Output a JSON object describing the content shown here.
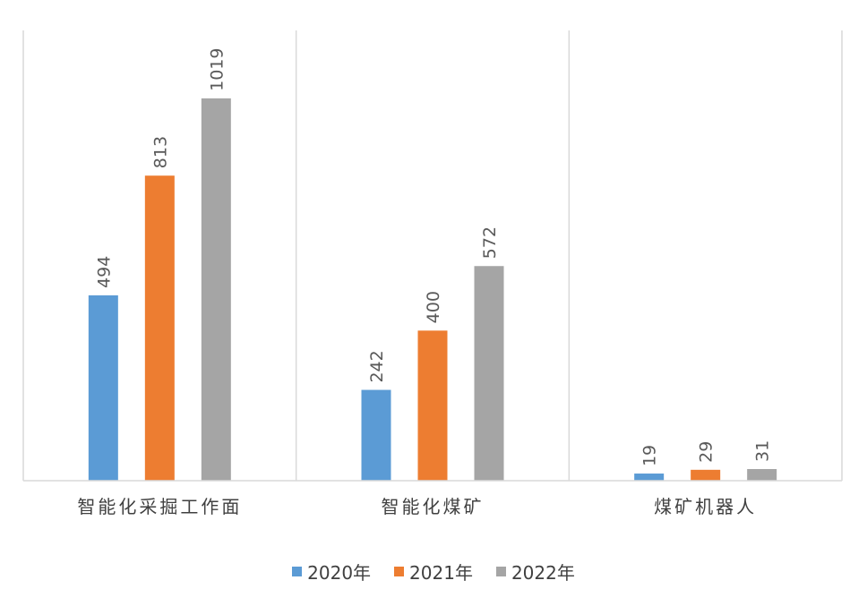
{
  "chart_data": {
    "type": "bar",
    "categories": [
      "智能化采掘工作面",
      "智能化煤矿",
      "煤矿机器人"
    ],
    "series": [
      {
        "name": "2020年",
        "values": [
          494,
          242,
          19
        ],
        "color": "#5b9bd5"
      },
      {
        "name": "2021年",
        "values": [
          813,
          400,
          29
        ],
        "color": "#ed7d31"
      },
      {
        "name": "2022年",
        "values": [
          1019,
          572,
          31
        ],
        "color": "#a5a5a5"
      }
    ],
    "title": "",
    "xlabel": "",
    "ylabel": "",
    "ylim": [
      0,
      1200
    ],
    "grid": false,
    "legend_position": "bottom",
    "data_labels": "rotated-vertical",
    "category_separators": true
  }
}
